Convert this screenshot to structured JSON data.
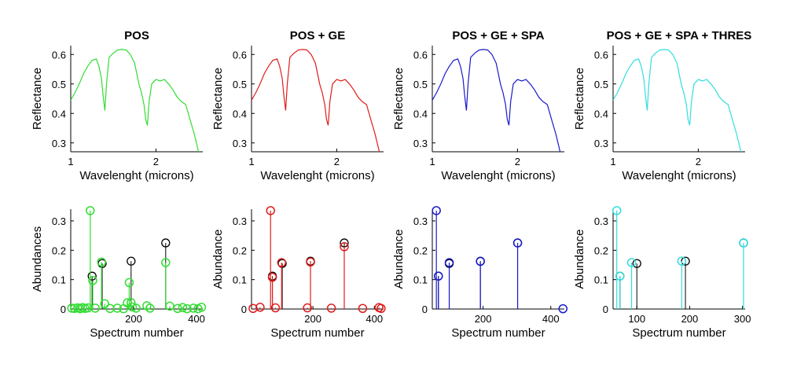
{
  "colors": {
    "green": "#33dd33",
    "red": "#e01c1c",
    "blue": "#1a1acc",
    "cyan": "#33dddd",
    "black": "#000000"
  },
  "spectrum": {
    "wavelength": [
      1.0,
      1.05,
      1.1,
      1.15,
      1.2,
      1.25,
      1.3,
      1.33,
      1.36,
      1.38,
      1.4,
      1.42,
      1.45,
      1.5,
      1.55,
      1.6,
      1.65,
      1.7,
      1.75,
      1.8,
      1.83,
      1.86,
      1.88,
      1.9,
      1.92,
      1.95,
      2.0,
      2.05,
      2.1,
      2.15,
      2.2,
      2.25,
      2.3,
      2.35,
      2.4,
      2.45,
      2.5
    ],
    "reflectance": [
      0.445,
      0.47,
      0.5,
      0.535,
      0.56,
      0.58,
      0.585,
      0.56,
      0.52,
      0.46,
      0.41,
      0.5,
      0.59,
      0.605,
      0.615,
      0.617,
      0.615,
      0.6,
      0.57,
      0.5,
      0.47,
      0.43,
      0.38,
      0.36,
      0.44,
      0.5,
      0.515,
      0.51,
      0.515,
      0.5,
      0.48,
      0.455,
      0.44,
      0.43,
      0.38,
      0.33,
      0.27
    ]
  },
  "chart_data": [
    {
      "type": "line",
      "title": "POS",
      "xlabel": "Wavelenght (microns)",
      "ylabel": "Reflectance",
      "xlim": [
        1.0,
        2.55
      ],
      "ylim": [
        0.27,
        0.63
      ],
      "xticks": [
        1,
        2
      ],
      "xtick_labels": [
        "1",
        "2"
      ],
      "yticks": [
        0.3,
        0.4,
        0.5,
        0.6
      ],
      "ytick_labels": [
        "0.3",
        "0.4",
        "0.5",
        "0.6"
      ],
      "color": "green"
    },
    {
      "type": "line",
      "title": "POS + GE",
      "xlabel": "Wavelenght (microns)",
      "ylabel": "Reflectance",
      "xlim": [
        1.0,
        2.55
      ],
      "ylim": [
        0.27,
        0.63
      ],
      "xticks": [
        1,
        2
      ],
      "xtick_labels": [
        "1",
        "2"
      ],
      "yticks": [
        0.3,
        0.4,
        0.5,
        0.6
      ],
      "ytick_labels": [
        "0.3",
        "0.4",
        "0.5",
        "0.6"
      ],
      "color": "red"
    },
    {
      "type": "line",
      "title": "POS + GE + SPA",
      "xlabel": "Wavelenght (microns)",
      "ylabel": "Reflectance",
      "xlim": [
        1.0,
        2.55
      ],
      "ylim": [
        0.27,
        0.63
      ],
      "xticks": [
        1,
        2
      ],
      "xtick_labels": [
        "1",
        "2"
      ],
      "yticks": [
        0.3,
        0.4,
        0.5,
        0.6
      ],
      "ytick_labels": [
        "0.3",
        "0.4",
        "0.5",
        "0.6"
      ],
      "color": "blue"
    },
    {
      "type": "line",
      "title": "POS + GE + SPA + THRES",
      "xlabel": "Wavelenght (microns)",
      "ylabel": "Reflectance",
      "xlim": [
        1.0,
        2.55
      ],
      "ylim": [
        0.27,
        0.63
      ],
      "xticks": [
        1,
        2
      ],
      "xtick_labels": [
        "1",
        "2"
      ],
      "yticks": [
        0.3,
        0.4,
        0.5,
        0.6
      ],
      "ytick_labels": [
        "0.3",
        "0.4",
        "0.5",
        "0.6"
      ],
      "color": "cyan"
    },
    {
      "type": "stem",
      "title": "",
      "xlabel": "Spectrum number",
      "ylabel": "Abundances",
      "xlim": [
        0,
        420
      ],
      "ylim": [
        0,
        0.34
      ],
      "xticks": [
        200,
        400
      ],
      "xtick_labels": [
        "200",
        "400"
      ],
      "yticks": [
        0,
        0.1,
        0.2,
        0.3
      ],
      "ytick_labels": [
        "0",
        "0.1",
        "0.2",
        "0.3"
      ],
      "color": "green",
      "reference": [
        {
          "x": 68,
          "y": 0.112
        },
        {
          "x": 100,
          "y": 0.155
        },
        {
          "x": 192,
          "y": 0.163
        },
        {
          "x": 302,
          "y": 0.225
        }
      ],
      "estimate": [
        {
          "x": 3,
          "y": 0.003
        },
        {
          "x": 12,
          "y": 0.002
        },
        {
          "x": 22,
          "y": 0.004
        },
        {
          "x": 30,
          "y": 0.001
        },
        {
          "x": 38,
          "y": 0.005
        },
        {
          "x": 46,
          "y": 0.002
        },
        {
          "x": 55,
          "y": 0.004
        },
        {
          "x": 62,
          "y": 0.335
        },
        {
          "x": 70,
          "y": 0.097
        },
        {
          "x": 78,
          "y": 0.003
        },
        {
          "x": 98,
          "y": 0.16
        },
        {
          "x": 108,
          "y": 0.018
        },
        {
          "x": 125,
          "y": 0.002
        },
        {
          "x": 148,
          "y": 0.003
        },
        {
          "x": 168,
          "y": 0.001
        },
        {
          "x": 180,
          "y": 0.021
        },
        {
          "x": 186,
          "y": 0.09
        },
        {
          "x": 192,
          "y": 0.022
        },
        {
          "x": 196,
          "y": 0.007
        },
        {
          "x": 208,
          "y": 0.003
        },
        {
          "x": 242,
          "y": 0.011
        },
        {
          "x": 252,
          "y": 0.003
        },
        {
          "x": 302,
          "y": 0.158
        },
        {
          "x": 315,
          "y": 0.01
        },
        {
          "x": 340,
          "y": 0.002
        },
        {
          "x": 356,
          "y": 0.005
        },
        {
          "x": 370,
          "y": 0.001
        },
        {
          "x": 390,
          "y": 0.003
        },
        {
          "x": 405,
          "y": 0.001
        },
        {
          "x": 416,
          "y": 0.006
        }
      ]
    },
    {
      "type": "stem",
      "title": "",
      "xlabel": "Spectrum number",
      "ylabel": "Abundance",
      "xlim": [
        0,
        430
      ],
      "ylim": [
        0,
        0.34
      ],
      "xticks": [
        200,
        400
      ],
      "xtick_labels": [
        "200",
        "400"
      ],
      "yticks": [
        0,
        0.1,
        0.2,
        0.3
      ],
      "ytick_labels": [
        "0",
        "0.1",
        "0.2",
        "0.3"
      ],
      "color": "red",
      "reference": [
        {
          "x": 68,
          "y": 0.112
        },
        {
          "x": 100,
          "y": 0.155
        },
        {
          "x": 192,
          "y": 0.163
        },
        {
          "x": 302,
          "y": 0.225
        }
      ],
      "estimate": [
        {
          "x": 5,
          "y": 0.002
        },
        {
          "x": 28,
          "y": 0.006
        },
        {
          "x": 62,
          "y": 0.335
        },
        {
          "x": 68,
          "y": 0.108
        },
        {
          "x": 78,
          "y": 0.004
        },
        {
          "x": 98,
          "y": 0.158
        },
        {
          "x": 182,
          "y": 0.004
        },
        {
          "x": 192,
          "y": 0.16
        },
        {
          "x": 260,
          "y": 0.003
        },
        {
          "x": 302,
          "y": 0.212
        },
        {
          "x": 362,
          "y": 0.002
        },
        {
          "x": 415,
          "y": 0.005
        },
        {
          "x": 422,
          "y": 0.002
        }
      ]
    },
    {
      "type": "stem",
      "title": "",
      "xlabel": "Spectrum number",
      "ylabel": "Abundance",
      "xlim": [
        50,
        440
      ],
      "ylim": [
        0,
        0.34
      ],
      "xticks": [
        200,
        400
      ],
      "xtick_labels": [
        "200",
        "400"
      ],
      "yticks": [
        0,
        0.1,
        0.2,
        0.3
      ],
      "ytick_labels": [
        "0",
        "0.1",
        "0.2",
        "0.3"
      ],
      "color": "blue",
      "reference": [
        {
          "x": 68,
          "y": 0.112
        },
        {
          "x": 100,
          "y": 0.155
        },
        {
          "x": 192,
          "y": 0.163
        },
        {
          "x": 302,
          "y": 0.225
        }
      ],
      "estimate": [
        {
          "x": 62,
          "y": 0.335
        },
        {
          "x": 68,
          "y": 0.112
        },
        {
          "x": 100,
          "y": 0.158
        },
        {
          "x": 192,
          "y": 0.162
        },
        {
          "x": 302,
          "y": 0.225
        },
        {
          "x": 436,
          "y": 0.001
        }
      ]
    },
    {
      "type": "stem",
      "title": "",
      "xlabel": "Spectrum number",
      "ylabel": "Abundance",
      "xlim": [
        55,
        305
      ],
      "ylim": [
        0,
        0.34
      ],
      "xticks": [
        100,
        200,
        300
      ],
      "xtick_labels": [
        "100",
        "200",
        "300"
      ],
      "yticks": [
        0,
        0.1,
        0.2,
        0.3
      ],
      "ytick_labels": [
        "0",
        "0.1",
        "0.2",
        "0.3"
      ],
      "color": "cyan",
      "reference": [
        {
          "x": 68,
          "y": 0.112
        },
        {
          "x": 100,
          "y": 0.155
        },
        {
          "x": 192,
          "y": 0.163
        },
        {
          "x": 302,
          "y": 0.225
        }
      ],
      "estimate": [
        {
          "x": 62,
          "y": 0.335
        },
        {
          "x": 68,
          "y": 0.112
        },
        {
          "x": 90,
          "y": 0.158
        },
        {
          "x": 185,
          "y": 0.163
        },
        {
          "x": 302,
          "y": 0.225
        }
      ]
    }
  ]
}
